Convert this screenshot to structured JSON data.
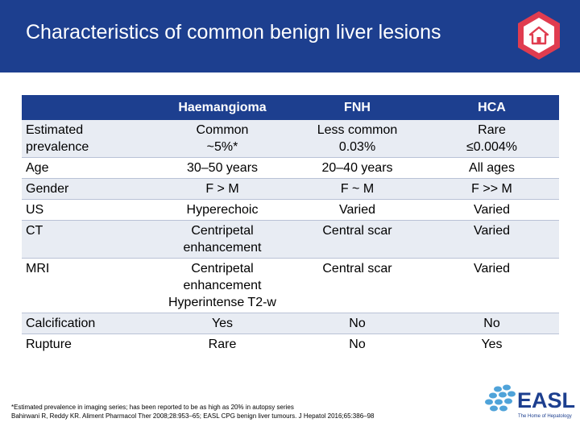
{
  "slide": {
    "title": "Characteristics of common benign liver lesions"
  },
  "home_button": {
    "icon": "home-icon",
    "color": "#e03c4f"
  },
  "table": {
    "headers": [
      "",
      "Haemangioma",
      "FNH",
      "HCA"
    ],
    "rows": [
      {
        "label": [
          "Estimated",
          "prevalence"
        ],
        "haemangioma": [
          "Common",
          "~5%*"
        ],
        "fnh": [
          "Less common",
          "0.03%"
        ],
        "hca": [
          "Rare",
          "≤0.004%"
        ]
      },
      {
        "label": [
          "Age"
        ],
        "haemangioma": [
          "30–50 years"
        ],
        "fnh": [
          "20–40 years"
        ],
        "hca": [
          "All ages"
        ]
      },
      {
        "label": [
          "Gender"
        ],
        "haemangioma": [
          "F > M"
        ],
        "fnh": [
          "F ~ M"
        ],
        "hca": [
          "F >> M"
        ]
      },
      {
        "label": [
          "US"
        ],
        "haemangioma": [
          "Hyperechoic"
        ],
        "fnh": [
          "Varied"
        ],
        "hca": [
          "Varied"
        ]
      },
      {
        "label": [
          "CT"
        ],
        "haemangioma": [
          "Centripetal",
          "enhancement"
        ],
        "fnh": [
          "Central scar"
        ],
        "hca": [
          "Varied"
        ]
      },
      {
        "label": [
          "MRI"
        ],
        "haemangioma": [
          "Centripetal",
          "enhancement",
          "Hyperintense T2-w"
        ],
        "fnh": [
          "Central scar"
        ],
        "hca": [
          "Varied"
        ]
      },
      {
        "label": [
          "Calcification"
        ],
        "haemangioma": [
          "Yes"
        ],
        "fnh": [
          "No"
        ],
        "hca": [
          "No"
        ]
      },
      {
        "label": [
          "Rupture"
        ],
        "haemangioma": [
          "Rare"
        ],
        "fnh": [
          "No"
        ],
        "hca": [
          "Yes"
        ]
      }
    ]
  },
  "footnote": {
    "line1": "*Estimated prevalence in imaging series; has been reported to be as high as 20% in autopsy series",
    "line2": "Bahirwani R, Reddy KR. Aliment Pharmacol Ther 2008;28:953–65; EASL CPG benign liver tumours. J Hepatol 2016;65:386–98"
  },
  "logo": {
    "name": "EASL",
    "tagline": "The Home of Hepatology",
    "colors": {
      "primary": "#1d3f8f",
      "accent": "#4fa3d9"
    }
  },
  "colors": {
    "header": "#1d3f8f",
    "row_alt": "#e8ecf3"
  }
}
